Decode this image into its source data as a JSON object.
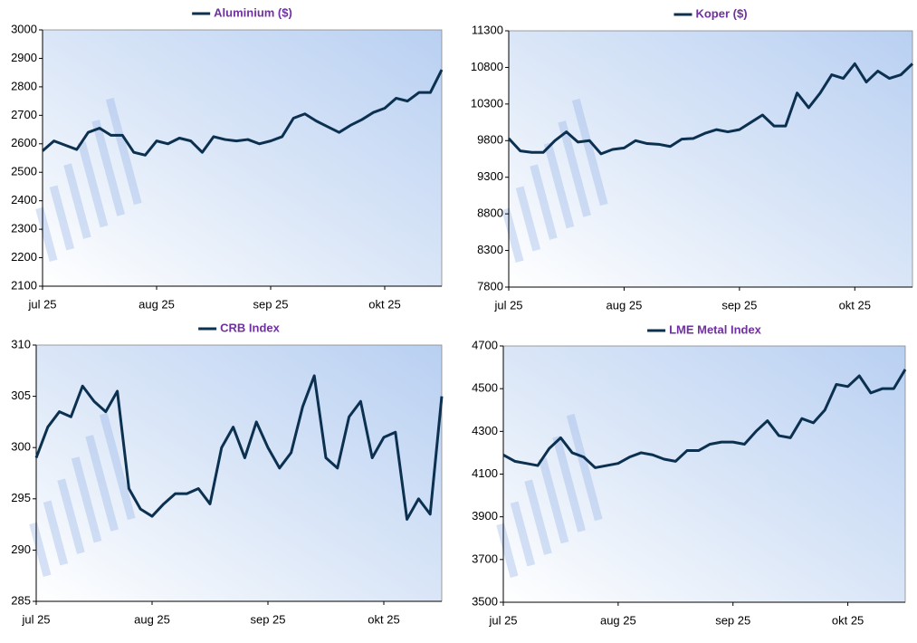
{
  "chart_data": [
    {
      "type": "line",
      "categories": [
        "jul 25",
        null,
        null,
        null,
        null,
        null,
        null,
        null,
        null,
        null,
        "aug 25",
        null,
        null,
        null,
        null,
        null,
        null,
        null,
        null,
        null,
        "sep 25",
        null,
        null,
        null,
        null,
        null,
        null,
        null,
        null,
        null,
        "okt 25",
        null,
        null,
        null,
        null,
        null
      ],
      "series": [
        {
          "name": "Aluminium ($)",
          "color": "#0b3050",
          "values": [
            2575,
            2610,
            2595,
            2580,
            2640,
            2655,
            2630,
            2630,
            2570,
            2560,
            2610,
            2600,
            2620,
            2610,
            2570,
            2625,
            2615,
            2610,
            2615,
            2600,
            2610,
            2625,
            2690,
            2705,
            2680,
            2660,
            2640,
            2665,
            2685,
            2710,
            2725,
            2760,
            2750,
            2780,
            2780,
            2860
          ]
        }
      ],
      "ylim": [
        2100,
        3000
      ],
      "yticks": [
        2100,
        2200,
        2300,
        2400,
        2500,
        2600,
        2700,
        2800,
        2900,
        3000
      ]
    },
    {
      "type": "line",
      "categories": [
        "jul 25",
        null,
        null,
        null,
        null,
        null,
        null,
        null,
        null,
        null,
        "aug 25",
        null,
        null,
        null,
        null,
        null,
        null,
        null,
        null,
        null,
        "sep 25",
        null,
        null,
        null,
        null,
        null,
        null,
        null,
        null,
        null,
        "okt 25",
        null,
        null,
        null,
        null,
        null
      ],
      "series": [
        {
          "name": "Koper ($)",
          "color": "#0b3050",
          "values": [
            9830,
            9660,
            9640,
            9640,
            9800,
            9920,
            9780,
            9800,
            9620,
            9680,
            9700,
            9800,
            9760,
            9750,
            9720,
            9820,
            9830,
            9900,
            9950,
            9920,
            9950,
            10050,
            10150,
            10000,
            10000,
            10450,
            10250,
            10450,
            10700,
            10650,
            10850,
            10600,
            10750,
            10650,
            10700,
            10850
          ]
        }
      ],
      "ylim": [
        7800,
        11300
      ],
      "yticks": [
        7800,
        8300,
        8800,
        9300,
        9800,
        10300,
        10800,
        11300
      ]
    },
    {
      "type": "line",
      "categories": [
        "jul 25",
        null,
        null,
        null,
        null,
        null,
        null,
        null,
        null,
        null,
        "aug 25",
        null,
        null,
        null,
        null,
        null,
        null,
        null,
        null,
        null,
        "sep 25",
        null,
        null,
        null,
        null,
        null,
        null,
        null,
        null,
        null,
        "okt 25",
        null,
        null,
        null,
        null,
        null
      ],
      "series": [
        {
          "name": "CRB Index",
          "color": "#0b3050",
          "values": [
            299,
            302,
            303.5,
            303,
            306,
            304.5,
            303.5,
            305.5,
            296,
            294,
            293.3,
            294.5,
            295.5,
            295.5,
            296,
            294.5,
            300,
            302,
            299,
            302.5,
            300,
            298,
            299.5,
            304,
            307,
            299,
            298,
            303,
            304.5,
            299,
            301,
            301.5,
            293,
            295,
            293.5,
            305
          ]
        }
      ],
      "ylim": [
        285,
        310
      ],
      "yticks": [
        285,
        290,
        295,
        300,
        305,
        310
      ]
    },
    {
      "type": "line",
      "categories": [
        "jul 25",
        null,
        null,
        null,
        null,
        null,
        null,
        null,
        null,
        null,
        "aug 25",
        null,
        null,
        null,
        null,
        null,
        null,
        null,
        null,
        null,
        "sep 25",
        null,
        null,
        null,
        null,
        null,
        null,
        null,
        null,
        null,
        "okt 25",
        null,
        null,
        null,
        null,
        null
      ],
      "series": [
        {
          "name": "LME Metal Index",
          "color": "#0b3050",
          "values": [
            4190,
            4160,
            4150,
            4140,
            4220,
            4270,
            4200,
            4180,
            4130,
            4140,
            4150,
            4180,
            4200,
            4190,
            4170,
            4160,
            4210,
            4210,
            4240,
            4250,
            4250,
            4240,
            4300,
            4350,
            4280,
            4270,
            4360,
            4340,
            4400,
            4520,
            4510,
            4560,
            4480,
            4500,
            4500,
            4590
          ]
        }
      ],
      "ylim": [
        3500,
        4700
      ],
      "yticks": [
        3500,
        3700,
        3900,
        4100,
        4300,
        4500,
        4700
      ]
    }
  ]
}
